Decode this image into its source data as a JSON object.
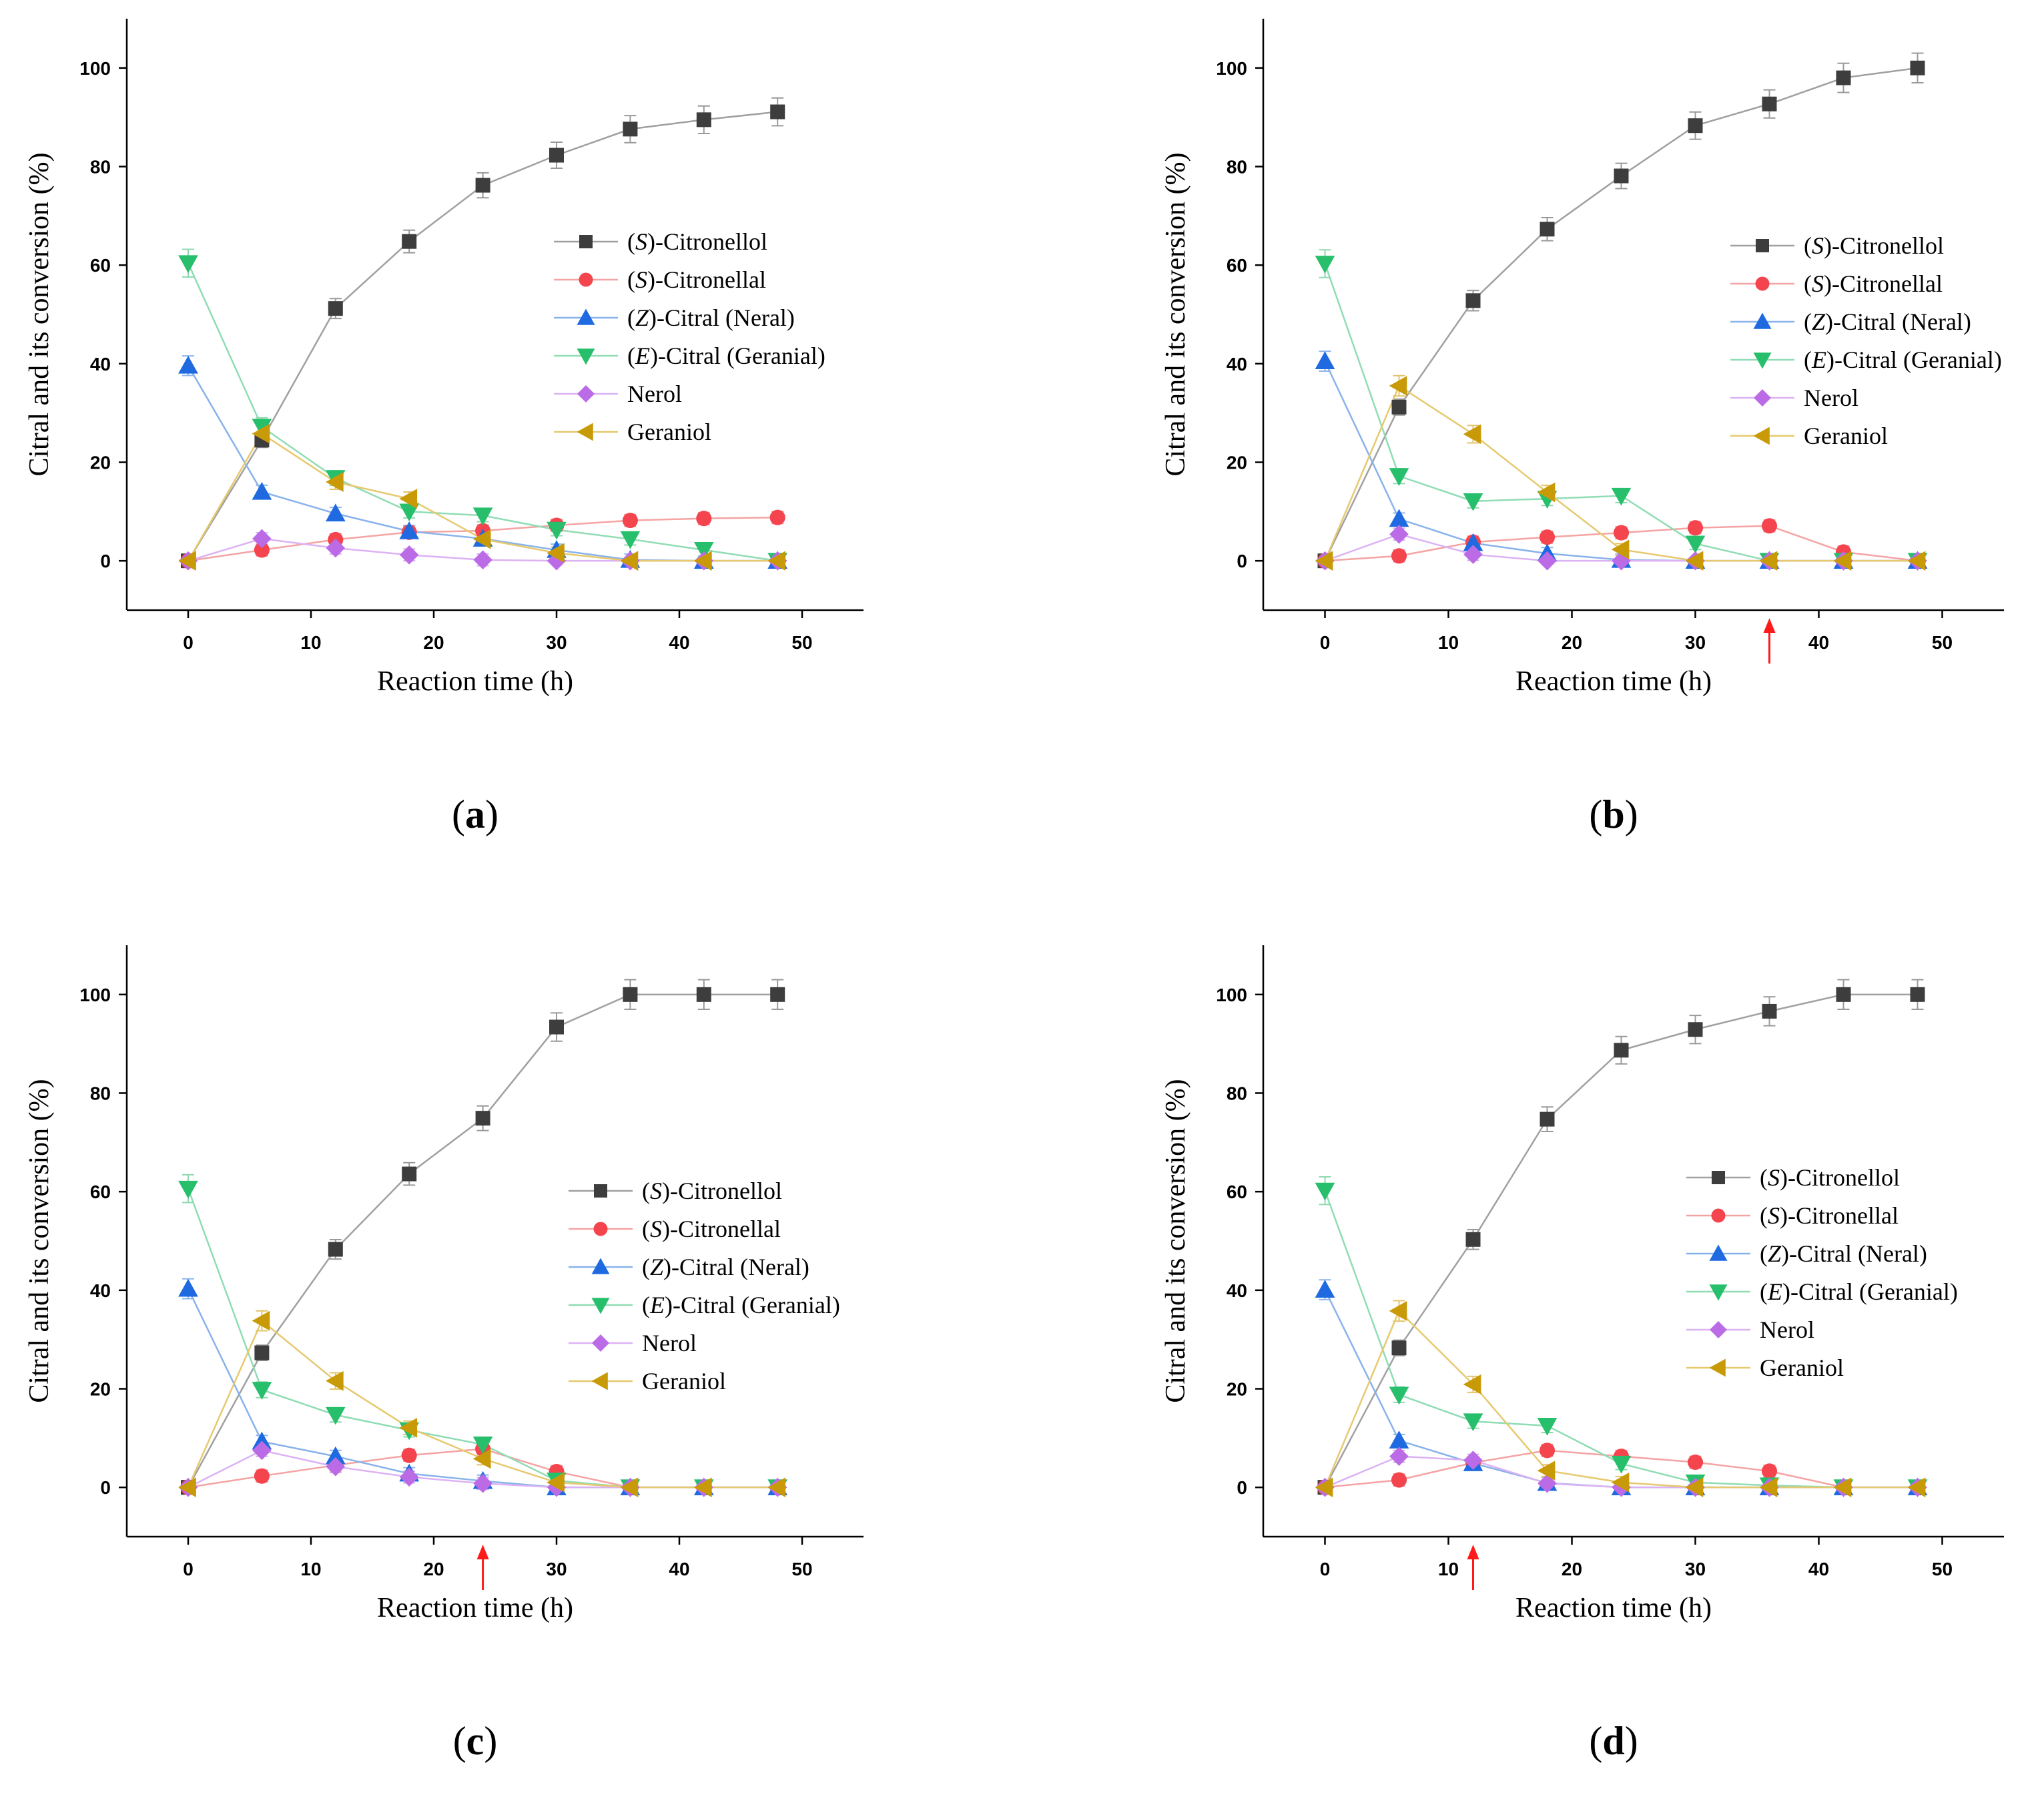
{
  "chart_data": [
    {
      "type": "line",
      "panel": "a",
      "caption": "a",
      "xlabel": "Reaction time (h)",
      "ylabel": "Citral and its conversion (%)",
      "xlim": [
        -5,
        55
      ],
      "ylim": [
        -10,
        110
      ],
      "xticks": [
        0,
        10,
        20,
        30,
        40,
        50
      ],
      "yticks": [
        0,
        20,
        40,
        60,
        80,
        100
      ],
      "arrow_x": null,
      "legend_position": "center-right",
      "x": [
        0,
        6,
        12,
        18,
        24,
        30,
        36,
        42,
        48
      ],
      "series": [
        {
          "prefix": "(",
          "italic": "S",
          "suffix": ")-Citronellol",
          "values": [
            0,
            24.5,
            51.2,
            64.8,
            76.2,
            82.3,
            87.6,
            89.5,
            91.1
          ]
        },
        {
          "prefix": "(",
          "italic": "S",
          "suffix": ")-Citronellal",
          "values": [
            0,
            2.2,
            4.3,
            5.8,
            6.1,
            7.2,
            8.2,
            8.6,
            8.8
          ]
        },
        {
          "prefix": "(",
          "italic": "Z",
          "suffix": ")-Citral (Neral)",
          "values": [
            39.6,
            14.0,
            9.6,
            6.0,
            4.5,
            2.2,
            0.2,
            0,
            0
          ]
        },
        {
          "prefix": "(",
          "italic": "E",
          "suffix": ")-Citral (Geranial)",
          "values": [
            60.4,
            27.2,
            16.8,
            10.0,
            9.2,
            6.3,
            4.4,
            2.2,
            0
          ]
        },
        {
          "prefix": "",
          "italic": "",
          "suffix": "Nerol",
          "values": [
            0,
            4.5,
            2.6,
            1.2,
            0.2,
            0,
            0,
            0,
            0
          ]
        },
        {
          "prefix": "",
          "italic": "",
          "suffix": "Geraniol",
          "values": [
            0,
            25.8,
            16.0,
            12.6,
            4.4,
            1.6,
            0,
            0,
            0
          ]
        }
      ]
    },
    {
      "type": "line",
      "panel": "b",
      "caption": "b",
      "xlabel": "Reaction time (h)",
      "ylabel": "Citral and its conversion (%)",
      "xlim": [
        -5,
        55
      ],
      "ylim": [
        -10,
        110
      ],
      "xticks": [
        0,
        10,
        20,
        30,
        40,
        50
      ],
      "yticks": [
        0,
        20,
        40,
        60,
        80,
        100
      ],
      "arrow_x": 36,
      "legend_position": "center-right",
      "x": [
        0,
        6,
        12,
        18,
        24,
        30,
        36,
        42,
        48
      ],
      "series": [
        {
          "prefix": "(",
          "italic": "S",
          "suffix": ")-Citronellol",
          "values": [
            0,
            31.2,
            52.8,
            67.3,
            78.1,
            88.3,
            92.7,
            98.0,
            100
          ]
        },
        {
          "prefix": "(",
          "italic": "S",
          "suffix": ")-Citronellal",
          "values": [
            0,
            1.0,
            3.8,
            4.8,
            5.7,
            6.7,
            7.1,
            1.8,
            0
          ]
        },
        {
          "prefix": "(",
          "italic": "Z",
          "suffix": ")-Citral (Neral)",
          "values": [
            40.5,
            8.5,
            3.6,
            1.5,
            0.2,
            0,
            0,
            0,
            0
          ]
        },
        {
          "prefix": "(",
          "italic": "E",
          "suffix": ")-Citral (Geranial)",
          "values": [
            60.3,
            17.2,
            12.1,
            12.6,
            13.2,
            3.5,
            0,
            0,
            0
          ]
        },
        {
          "prefix": "",
          "italic": "",
          "suffix": "Nerol",
          "values": [
            0,
            5.4,
            1.3,
            0,
            0,
            0,
            0,
            0,
            0
          ]
        },
        {
          "prefix": "",
          "italic": "",
          "suffix": "Geraniol",
          "values": [
            0,
            35.5,
            25.7,
            13.9,
            2.3,
            0,
            0,
            0,
            0
          ]
        }
      ]
    },
    {
      "type": "line",
      "panel": "c",
      "caption": "c",
      "xlabel": "Reaction time (h)",
      "ylabel": "Citral and its conversion (%)",
      "xlim": [
        -5,
        55
      ],
      "ylim": [
        -10,
        110
      ],
      "xticks": [
        0,
        10,
        20,
        30,
        40,
        50
      ],
      "yticks": [
        0,
        20,
        40,
        60,
        80,
        100
      ],
      "arrow_x": 24,
      "legend_position": "center-right",
      "x": [
        0,
        6,
        12,
        18,
        24,
        30,
        36,
        42,
        48
      ],
      "series": [
        {
          "prefix": "(",
          "italic": "S",
          "suffix": ")-Citronellol",
          "values": [
            0,
            27.3,
            48.3,
            63.6,
            74.9,
            93.4,
            100,
            100,
            100
          ]
        },
        {
          "prefix": "(",
          "italic": "S",
          "suffix": ")-Citronellal",
          "values": [
            0,
            2.3,
            4.5,
            6.5,
            7.8,
            3.2,
            0,
            0,
            0
          ]
        },
        {
          "prefix": "(",
          "italic": "Z",
          "suffix": ")-Citral (Neral)",
          "values": [
            40.3,
            9.3,
            6.3,
            2.8,
            1.3,
            0,
            0,
            0,
            0
          ]
        },
        {
          "prefix": "(",
          "italic": "E",
          "suffix": ")-Citral (Geranial)",
          "values": [
            60.6,
            19.8,
            14.7,
            11.6,
            8.7,
            1.4,
            0,
            0,
            0
          ]
        },
        {
          "prefix": "",
          "italic": "",
          "suffix": "Nerol",
          "values": [
            0,
            7.5,
            4.2,
            2.1,
            0.8,
            0,
            0,
            0,
            0
          ]
        },
        {
          "prefix": "",
          "italic": "",
          "suffix": "Geraniol",
          "values": [
            0,
            33.8,
            21.6,
            12.1,
            5.8,
            1.0,
            0,
            0,
            0
          ]
        }
      ]
    },
    {
      "type": "line",
      "panel": "d",
      "caption": "d",
      "xlabel": "Reaction time (h)",
      "ylabel": "Citral and its conversion (%)",
      "xlim": [
        -5,
        55
      ],
      "ylim": [
        -10,
        110
      ],
      "xticks": [
        0,
        10,
        20,
        30,
        40,
        50
      ],
      "yticks": [
        0,
        20,
        40,
        60,
        80,
        100
      ],
      "arrow_x": 12,
      "legend_position": "center-right",
      "x": [
        0,
        6,
        12,
        18,
        24,
        30,
        36,
        42,
        48
      ],
      "series": [
        {
          "prefix": "(",
          "italic": "S",
          "suffix": ")-Citronellol",
          "values": [
            0,
            28.3,
            50.3,
            74.7,
            88.7,
            92.9,
            96.6,
            100,
            100
          ]
        },
        {
          "prefix": "(",
          "italic": "S",
          "suffix": ")-Citronellal",
          "values": [
            0,
            1.5,
            5.0,
            7.5,
            6.3,
            5.1,
            3.3,
            0,
            0
          ]
        },
        {
          "prefix": "(",
          "italic": "Z",
          "suffix": ")-Citral (Neral)",
          "values": [
            40.1,
            9.5,
            4.9,
            0.9,
            0,
            0,
            0,
            0,
            0
          ]
        },
        {
          "prefix": "(",
          "italic": "E",
          "suffix": ")-Citral (Geranial)",
          "values": [
            60.2,
            18.8,
            13.4,
            12.5,
            4.8,
            1.0,
            0.4,
            0,
            0
          ]
        },
        {
          "prefix": "",
          "italic": "",
          "suffix": "Nerol",
          "values": [
            0,
            6.3,
            5.5,
            0.8,
            0,
            0,
            0,
            0,
            0
          ]
        },
        {
          "prefix": "",
          "italic": "",
          "suffix": "Geraniol",
          "values": [
            0,
            35.8,
            20.9,
            3.4,
            1.0,
            0,
            0,
            0,
            0
          ]
        }
      ]
    }
  ],
  "series_style": [
    {
      "marker": "square",
      "line_color": "#a0a0a0",
      "marker_color": "#3d3d3d",
      "error_color": "#9a9a9a"
    },
    {
      "marker": "circle",
      "line_color": "#f5a3a3",
      "marker_color": "#f4444e",
      "error_color": "#f39a9a"
    },
    {
      "marker": "triangle-up",
      "line_color": "#88b2ea",
      "marker_color": "#1f6ae0",
      "error_color": "#8fb6ec"
    },
    {
      "marker": "triangle-down",
      "line_color": "#90dcb4",
      "marker_color": "#27bf6b",
      "error_color": "#8fd9b0"
    },
    {
      "marker": "diamond",
      "line_color": "#dcb2f3",
      "marker_color": "#bb6be6",
      "error_color": "#d6acf0"
    },
    {
      "marker": "triangle-left",
      "line_color": "#e6c96f",
      "marker_color": "#c99a08",
      "error_color": "#e3c467"
    }
  ],
  "arrow_color": "#ff1a1a"
}
